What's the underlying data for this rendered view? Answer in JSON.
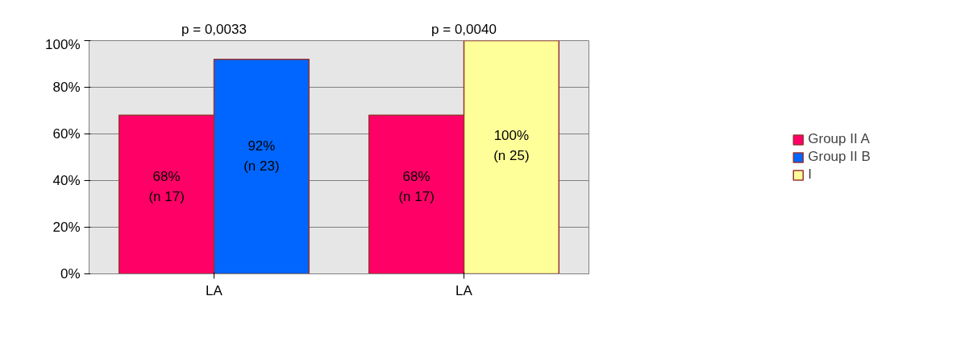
{
  "chart_data": {
    "type": "bar",
    "categories": [
      "LA",
      "LA"
    ],
    "series": [
      {
        "name": "Group II A",
        "color": "#ff0066",
        "values": [
          68,
          68
        ],
        "value_labels": [
          "68%\n(n 17)",
          "68%\n(n 17)"
        ]
      },
      {
        "name": "Group II B",
        "color": "#0066ff",
        "values": [
          92,
          null
        ],
        "value_labels": [
          "92%\n(n 23)",
          null
        ]
      },
      {
        "name": "I",
        "color": "#ffff99",
        "values": [
          null,
          100
        ],
        "value_labels": [
          null,
          "100%\n(n 25)"
        ]
      }
    ],
    "ylim": [
      0,
      100
    ],
    "yticks": [
      {
        "value": 0,
        "label": "0%"
      },
      {
        "value": 20,
        "label": "20%"
      },
      {
        "value": 40,
        "label": "40%"
      },
      {
        "value": 60,
        "label": "60%"
      },
      {
        "value": 80,
        "label": "80%"
      },
      {
        "value": 100,
        "label": "100%"
      }
    ],
    "annotations": [
      "p = 0,0033",
      "p = 0,0040"
    ],
    "grid": "y",
    "legend": "right"
  }
}
